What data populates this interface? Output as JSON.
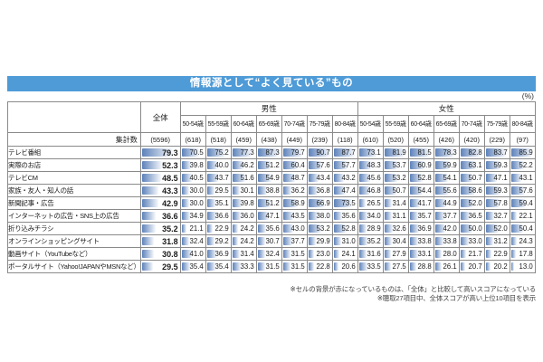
{
  "title": "情報源として“よく見ている”もの",
  "unit_label": "(%)",
  "header": {
    "overall_label": "全体",
    "male_label": "男性",
    "female_label": "女性",
    "count_label": "集計数",
    "age_groups": [
      "50-54歳",
      "55-59歳",
      "60-64歳",
      "65-69歳",
      "70-74歳",
      "75-79歳",
      "80-84歳"
    ]
  },
  "chart_data": {
    "type": "table",
    "title": "情報源として“よく見ている”もの",
    "unit": "%",
    "group_columns": [
      "全体",
      "男性",
      "女性"
    ],
    "age_groups": [
      "50-54歳",
      "55-59歳",
      "60-64歳",
      "65-69歳",
      "70-74歳",
      "75-79歳",
      "80-84歳"
    ],
    "counts": {
      "overall": 5596,
      "male": [
        618,
        518,
        459,
        438,
        449,
        239,
        118
      ],
      "female": [
        610,
        520,
        455,
        426,
        420,
        229,
        97
      ]
    },
    "rows": [
      {
        "label": "テレビ番組",
        "overall": 79.3,
        "male": [
          70.5,
          75.2,
          77.3,
          87.3,
          79.7,
          90.7,
          87.7
        ],
        "female": [
          73.1,
          81.9,
          81.5,
          78.3,
          82.8,
          83.7,
          85.9
        ]
      },
      {
        "label": "実際のお店",
        "overall": 52.3,
        "male": [
          39.8,
          40.0,
          46.2,
          51.2,
          60.4,
          57.6,
          57.7
        ],
        "female": [
          48.3,
          53.7,
          60.9,
          59.9,
          63.1,
          59.3,
          52.2
        ]
      },
      {
        "label": "テレビCM",
        "overall": 48.5,
        "male": [
          40.5,
          43.7,
          51.6,
          54.9,
          48.7,
          43.4,
          43.2
        ],
        "female": [
          45.6,
          53.2,
          52.8,
          54.1,
          50.7,
          47.1,
          43.1
        ]
      },
      {
        "label": "家族・友人・知人の話",
        "overall": 43.3,
        "male": [
          30.0,
          29.5,
          30.1,
          38.8,
          36.2,
          36.8,
          47.4
        ],
        "female": [
          46.8,
          50.7,
          54.4,
          55.6,
          58.6,
          59.3,
          57.6
        ]
      },
      {
        "label": "新聞記事・広告",
        "overall": 42.9,
        "male": [
          30.0,
          35.1,
          39.8,
          51.2,
          58.9,
          66.9,
          73.5
        ],
        "female": [
          26.5,
          31.4,
          41.7,
          44.9,
          52.0,
          57.8,
          59.4
        ]
      },
      {
        "label": "インターネットの広告・SNS上の広告",
        "overall": 36.6,
        "male": [
          34.9,
          36.6,
          36.0,
          47.1,
          43.5,
          38.0,
          35.6
        ],
        "female": [
          34.0,
          31.1,
          35.7,
          37.7,
          36.5,
          32.7,
          22.1
        ]
      },
      {
        "label": "折り込みチラシ",
        "overall": 35.2,
        "male": [
          21.1,
          22.9,
          24.2,
          35.6,
          43.0,
          53.2,
          52.8
        ],
        "female": [
          28.9,
          32.6,
          36.9,
          42.0,
          50.0,
          52.0,
          50.4
        ]
      },
      {
        "label": "オンラインショッピングサイト",
        "overall": 31.8,
        "male": [
          32.4,
          29.2,
          24.2,
          30.7,
          37.7,
          29.9,
          31.0
        ],
        "female": [
          35.2,
          30.4,
          33.8,
          33.8,
          33.0,
          31.2,
          24.3
        ]
      },
      {
        "label": "動画サイト（YouTubeなど）",
        "overall": 30.8,
        "male": [
          41.0,
          36.9,
          31.4,
          32.4,
          31.5,
          23.0,
          24.1
        ],
        "female": [
          31.6,
          27.9,
          33.1,
          28.0,
          21.7,
          22.9,
          17.8
        ]
      },
      {
        "label": "ポータルサイト（Yahoo!JAPANやMSNなど）",
        "overall": 29.5,
        "male": [
          35.4,
          35.4,
          33.3,
          31.5,
          31.5,
          22.8,
          20.6
        ],
        "female": [
          33.5,
          27.5,
          28.8,
          26.1,
          20.7,
          20.2,
          13.0
        ]
      }
    ],
    "highlight_rule": "セルの背景が赤＝「全体」と比較して高いスコア",
    "bar_scale_max": 100
  },
  "footnotes": [
    "※セルの背景が赤になっているものは、「全体」と比較して高いスコアになっている",
    "※聴取27項目中、全体スコアが高い上位10項目を表示"
  ],
  "colors": {
    "title_bg": "#4f9bd7",
    "title_text": "#ffffff",
    "highlight_bg": "#f6c9c8",
    "bar_blue": "rgba(79,119,180,0.92)",
    "border": "#8a8a8a"
  }
}
